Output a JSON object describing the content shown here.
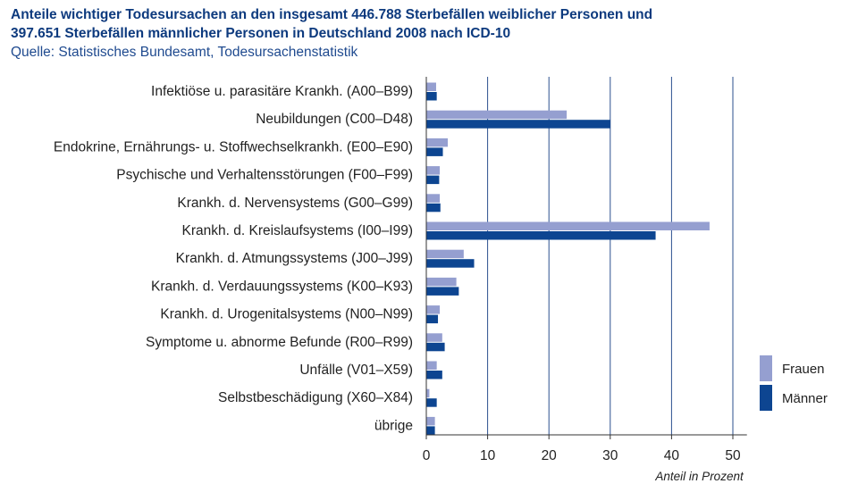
{
  "chart_data": {
    "type": "bar",
    "orientation": "horizontal",
    "title": "Anteile wichtiger Todesursachen an den insgesamt 446.788 Sterbefällen weiblicher Personen und 397.651 Sterbefällen männlicher Personen in Deutschland 2008 nach ICD-10",
    "title_lines": [
      "Anteile wichtiger Todesursachen an den insgesamt 446.788 Sterbefällen weiblicher Personen und",
      "397.651 Sterbefällen männlicher Personen in Deutschland 2008 nach ICD-10"
    ],
    "subtitle": "Quelle: Statistisches Bundesamt, Todesursachenstatistik",
    "xlabel": "Anteil in Prozent",
    "ylabel": "",
    "xlim": [
      0,
      52
    ],
    "xticks": [
      0,
      10,
      20,
      30,
      40,
      50
    ],
    "grid": "vertical",
    "legend_position": "right",
    "categories": [
      "Infektiöse u. parasitäre Krankh. (A00–B99)",
      "Neubildungen (C00–D48)",
      "Endokrine, Ernährungs- u. Stoffwechselkrankh. (E00–E90)",
      "Psychische und Verhaltensstörungen (F00–F99)",
      "Krankh. d. Nervensystems (G00–G99)",
      "Krankh. d. Kreislaufsystems (I00–I99)",
      "Krankh. d. Atmungssystems (J00–J99)",
      "Krankh. d. Verdauungssystems (K00–K93)",
      "Krankh. d. Urogenitalsystems (N00–N99)",
      "Symptome u. abnorme Befunde (R00–R99)",
      "Unfälle (V01–X59)",
      "Selbstbeschädigung (X60–X84)",
      "übrige"
    ],
    "series": [
      {
        "name": "Frauen",
        "color": "#959fd0",
        "values": [
          1.6,
          22.9,
          3.5,
          2.2,
          2.2,
          46.2,
          6.1,
          4.9,
          2.2,
          2.6,
          1.7,
          0.5,
          1.4
        ]
      },
      {
        "name": "Männer",
        "color": "#0d4591",
        "values": [
          1.7,
          30.0,
          2.7,
          2.1,
          2.3,
          37.4,
          7.8,
          5.3,
          1.9,
          3.0,
          2.6,
          1.7,
          1.4
        ]
      }
    ]
  }
}
